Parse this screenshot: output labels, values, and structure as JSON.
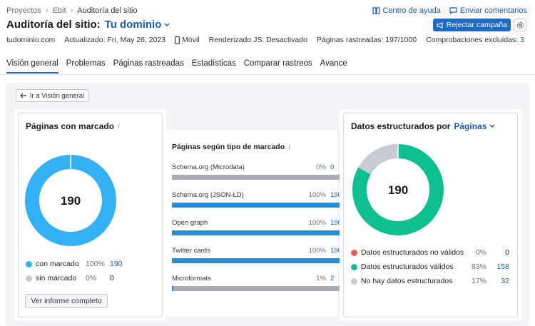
{
  "breadcrumb": [
    "Proyectos",
    "Ebit",
    "Auditoría del sitio"
  ],
  "header": {
    "help_label": "Centro de ayuda",
    "feedback_label": "Enviar comentarios",
    "title": "Auditoría del sitio:",
    "domain": "Tu dominio",
    "campaign_button": "Rejectar campaña"
  },
  "meta": {
    "domain": "tudominio.com",
    "updated": "Actualizado: Fri, May 26, 2023",
    "device": "Móvil",
    "js": "Renderizado JS: Desactivado",
    "crawled": "Páginas rastreadas: 197/1000",
    "excluded_label": "Comprobaciones excluidas:",
    "excluded_value": "3"
  },
  "tabs": [
    "Visión general",
    "Problemas",
    "Páginas rastreadas",
    "Estadísticas",
    "Comparar rastreos",
    "Avance"
  ],
  "back_button": "Ir a Visión general",
  "markup_card": {
    "title": "Páginas con marcado",
    "total": "190",
    "legend": [
      {
        "label": "con marcado",
        "pct": "100%",
        "count": "190",
        "color": "#34b0f5",
        "value": 190
      },
      {
        "label": "sin marcado",
        "pct": "0%",
        "count": "0",
        "color": "#c9cbd3",
        "value": 0
      }
    ],
    "report_button": "Ver informe completo"
  },
  "markup_types": {
    "title": "Páginas según tipo de marcado",
    "rows": [
      {
        "label": "Schema.org (Microdata)",
        "pct": "0%",
        "count": "0",
        "fill": 0
      },
      {
        "label": "Schema.org (JSON-LD)",
        "pct": "100%",
        "count": "190",
        "fill": 1
      },
      {
        "label": "Open graph",
        "pct": "100%",
        "count": "190",
        "fill": 1
      },
      {
        "label": "Twitter cards",
        "pct": "100%",
        "count": "190",
        "fill": 1
      },
      {
        "label": "Microformats",
        "pct": "1%",
        "count": "2",
        "fill": 0.01
      }
    ]
  },
  "structured_card": {
    "title": "Datos estructurados por",
    "selector": "Páginas",
    "total": "190",
    "legend": [
      {
        "label": "Datos estructurados no válidos",
        "pct": "0%",
        "count": "0",
        "color": "#ef5a5a",
        "value": 0
      },
      {
        "label": "Datos estructurados válidos",
        "pct": "83%",
        "count": "158",
        "color": "#0fbf92",
        "value": 158
      },
      {
        "label": "No hay datos estructurados",
        "pct": "17%",
        "count": "32",
        "color": "#c9cbd3",
        "value": 32
      }
    ]
  }
}
